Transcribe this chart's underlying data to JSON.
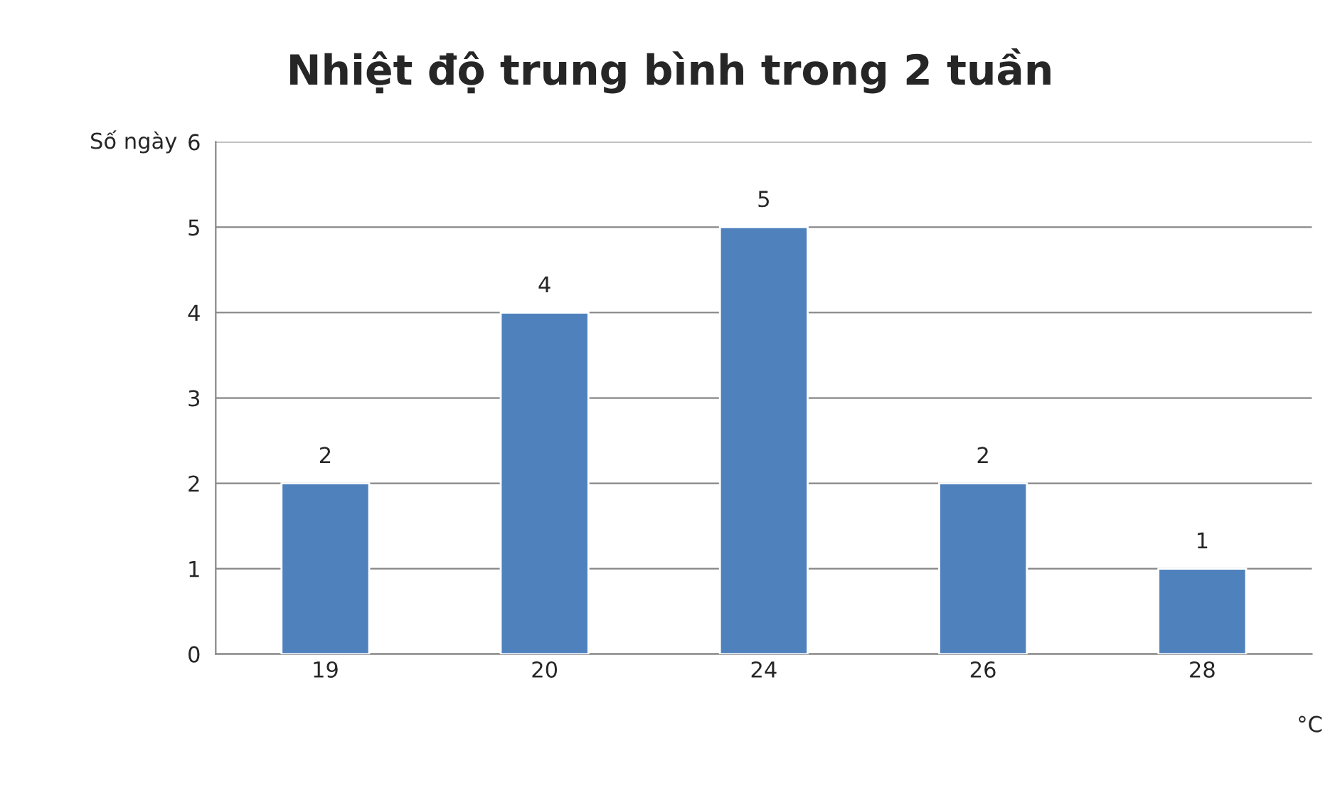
{
  "chart_data": {
    "type": "bar",
    "title": "Nhiệt độ trung bình trong 2 tuần",
    "xlabel": "°C",
    "ylabel": "Số ngày",
    "categories": [
      "19",
      "20",
      "24",
      "26",
      "28"
    ],
    "values": [
      2,
      4,
      5,
      2,
      1
    ],
    "color": "#4f81bd",
    "ylim": [
      0,
      6
    ],
    "yticks": [
      0,
      1,
      2,
      3,
      4,
      5,
      6
    ],
    "grid": "y",
    "data_labels": true
  }
}
